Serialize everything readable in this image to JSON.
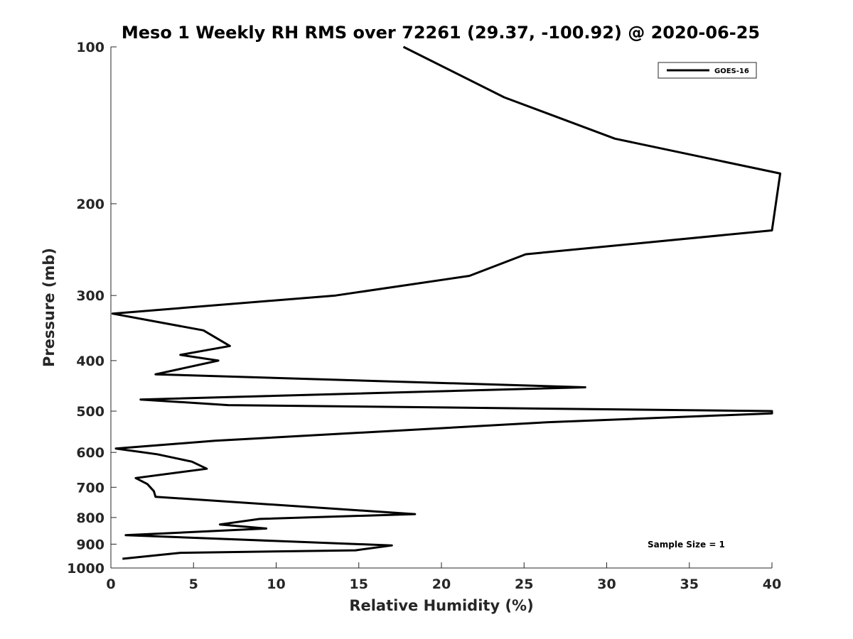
{
  "chart_data": {
    "type": "line",
    "title": "Meso 1 Weekly RH RMS over 72261 (29.37, -100.92) @ 2020-06-25",
    "xlabel": "Relative Humidity (%)",
    "ylabel": "Pressure (mb)",
    "xlim": [
      0,
      40
    ],
    "ylim": [
      100,
      1000
    ],
    "y_scale": "log",
    "y_reversed": true,
    "x_ticks": [
      0,
      5,
      10,
      15,
      20,
      25,
      30,
      35,
      40
    ],
    "y_ticks": [
      100,
      200,
      300,
      400,
      500,
      600,
      700,
      800,
      900,
      1000
    ],
    "grid": false,
    "legend_position": "top-right",
    "series": [
      {
        "name": "GOES-16",
        "color": "#000000",
        "points": [
          {
            "x": 17.7,
            "p": 100
          },
          {
            "x": 23.8,
            "p": 125
          },
          {
            "x": 30.5,
            "p": 150
          },
          {
            "x": 40.5,
            "p": 175
          },
          {
            "x": 40,
            "p": 225
          },
          {
            "x": 25.1,
            "p": 250
          },
          {
            "x": 21.7,
            "p": 275
          },
          {
            "x": 13.6,
            "p": 300
          },
          {
            "x": 0.1,
            "p": 325
          },
          {
            "x": 5.6,
            "p": 350
          },
          {
            "x": 7.2,
            "p": 375
          },
          {
            "x": 4.2,
            "p": 390
          },
          {
            "x": 6.5,
            "p": 400
          },
          {
            "x": 2.7,
            "p": 425
          },
          {
            "x": 28.7,
            "p": 450
          },
          {
            "x": 1.8,
            "p": 475
          },
          {
            "x": 7.1,
            "p": 487
          },
          {
            "x": 40,
            "p": 500
          },
          {
            "x": 40,
            "p": 505
          },
          {
            "x": 26.5,
            "p": 525
          },
          {
            "x": 6.3,
            "p": 570
          },
          {
            "x": 0.3,
            "p": 590
          },
          {
            "x": 2.8,
            "p": 605
          },
          {
            "x": 4.9,
            "p": 625
          },
          {
            "x": 5.8,
            "p": 645
          },
          {
            "x": 1.5,
            "p": 672
          },
          {
            "x": 2.2,
            "p": 690
          },
          {
            "x": 2.6,
            "p": 712
          },
          {
            "x": 2.7,
            "p": 730
          },
          {
            "x": 18.4,
            "p": 788
          },
          {
            "x": 9.0,
            "p": 805
          },
          {
            "x": 6.6,
            "p": 825
          },
          {
            "x": 9.4,
            "p": 840
          },
          {
            "x": 0.9,
            "p": 865
          },
          {
            "x": 17.0,
            "p": 905
          },
          {
            "x": 14.8,
            "p": 925
          },
          {
            "x": 4.2,
            "p": 935
          },
          {
            "x": 0.7,
            "p": 960
          }
        ]
      }
    ],
    "annotation": "Sample Size = 1"
  }
}
